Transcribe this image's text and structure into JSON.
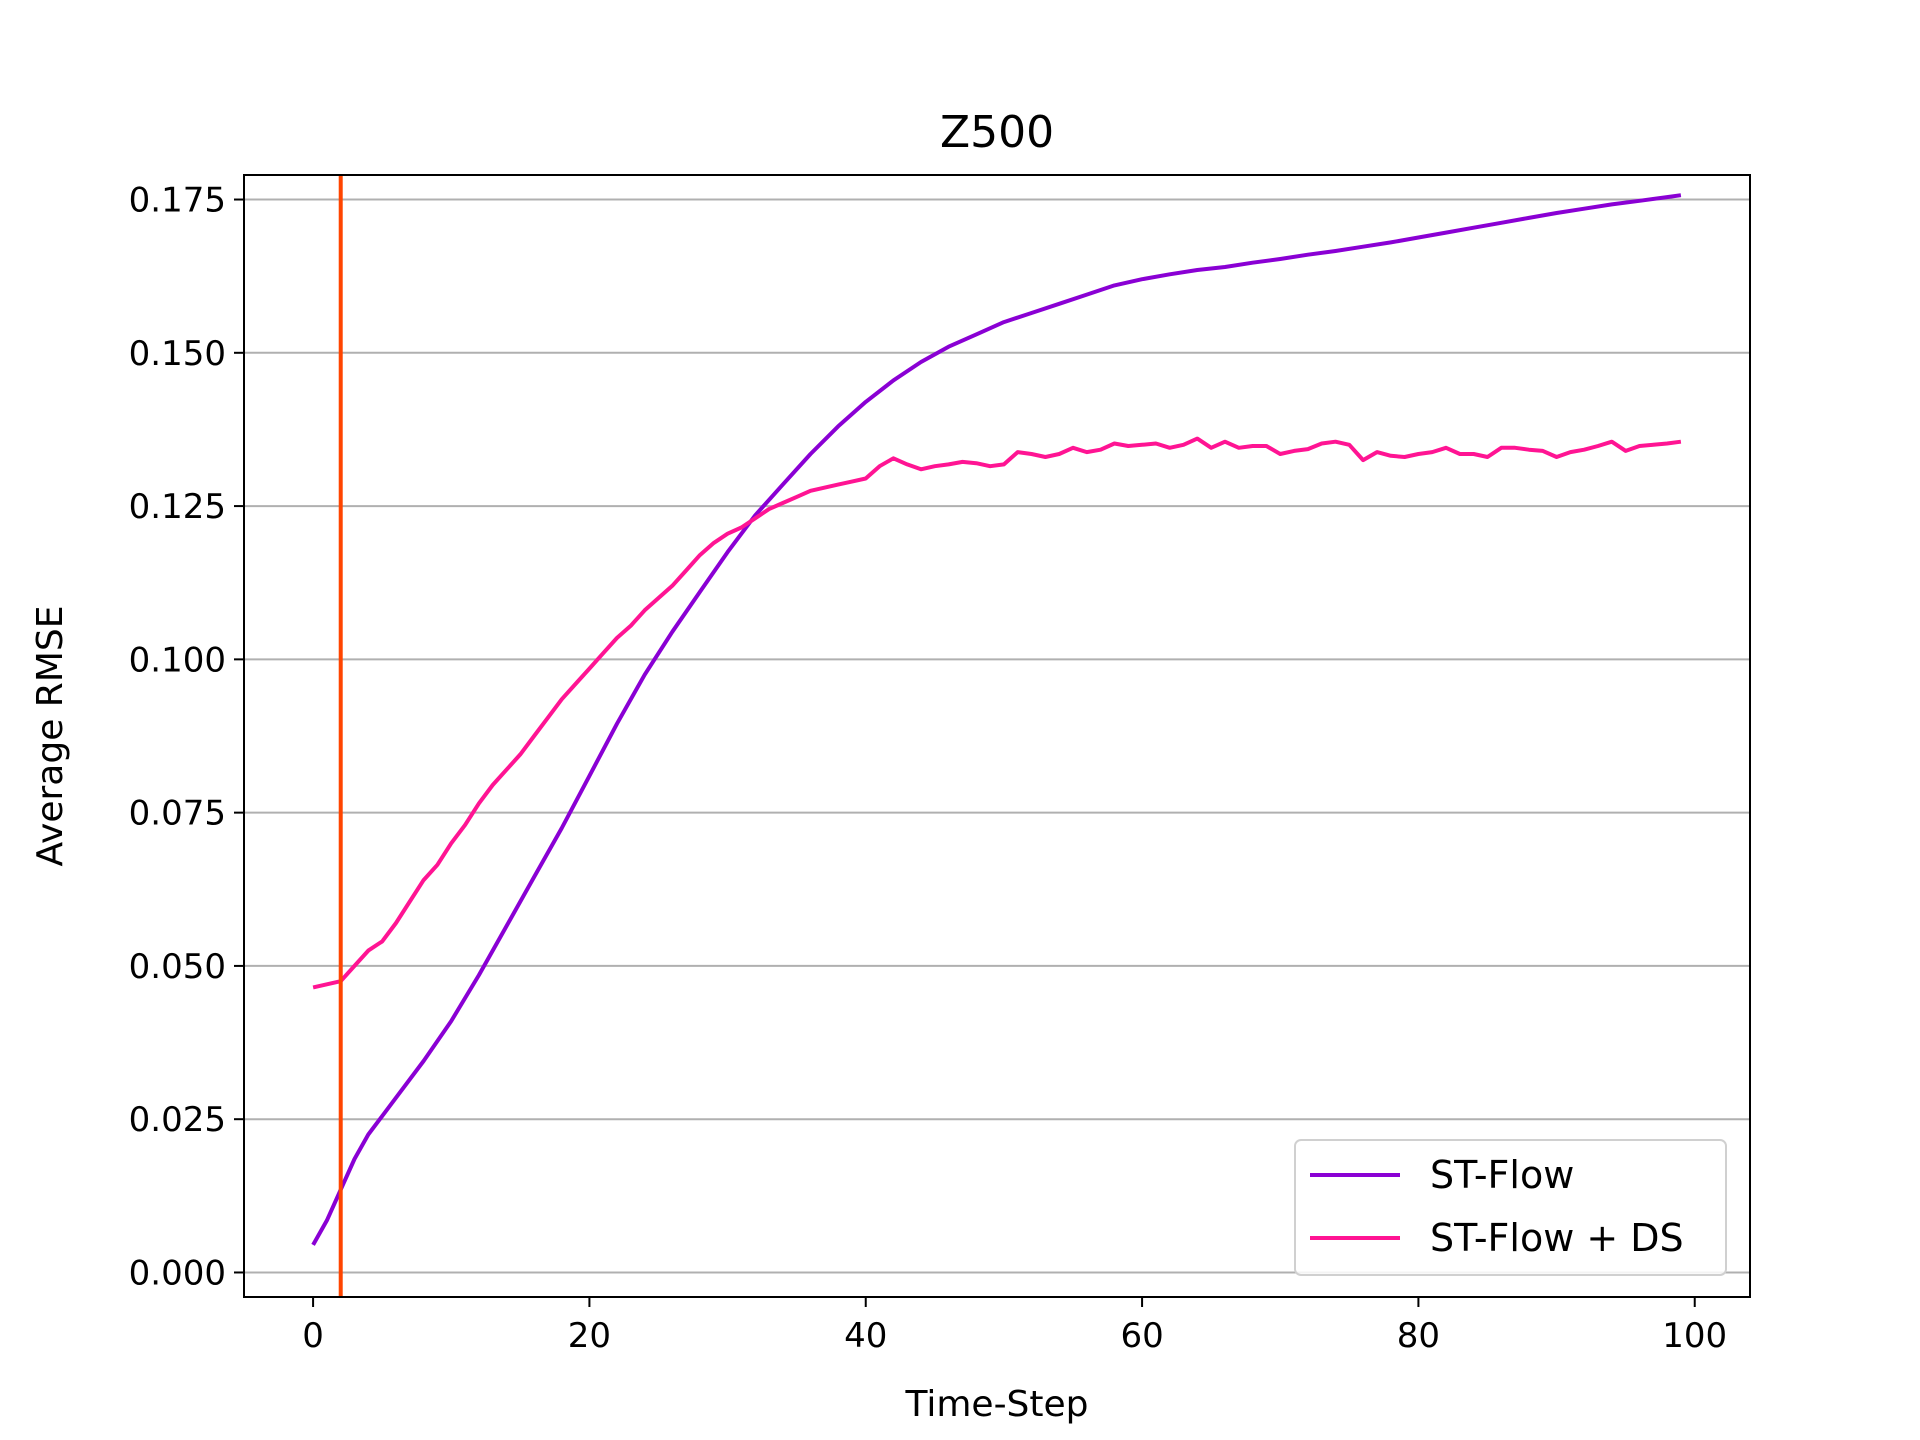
{
  "chart_data": {
    "type": "line",
    "title": "Z500",
    "xlabel": "Time-Step",
    "ylabel": "Average RMSE",
    "xlim": [
      -5,
      104
    ],
    "ylim": [
      -0.004,
      0.179
    ],
    "xticks": [
      0,
      20,
      40,
      60,
      80,
      100
    ],
    "xtick_labels": [
      "0",
      "20",
      "40",
      "60",
      "80",
      "100"
    ],
    "yticks": [
      0.0,
      0.025,
      0.05,
      0.075,
      0.1,
      0.125,
      0.15,
      0.175
    ],
    "ytick_labels": [
      "0.000",
      "0.025",
      "0.050",
      "0.075",
      "0.100",
      "0.125",
      "0.150",
      "0.175"
    ],
    "grid": "horizontal",
    "legend_position": "lower-right",
    "vertical_line": {
      "x": 2,
      "color": "#ff4500"
    },
    "series": [
      {
        "name": "ST-Flow",
        "color": "#8a00d4",
        "points": [
          [
            0,
            0.0045
          ],
          [
            1,
            0.0085
          ],
          [
            2,
            0.0135
          ],
          [
            3,
            0.0185
          ],
          [
            4,
            0.0225
          ],
          [
            5,
            0.0255
          ],
          [
            6,
            0.0285
          ],
          [
            8,
            0.0345
          ],
          [
            10,
            0.041
          ],
          [
            12,
            0.0485
          ],
          [
            14,
            0.0565
          ],
          [
            16,
            0.0645
          ],
          [
            18,
            0.0725
          ],
          [
            20,
            0.081
          ],
          [
            22,
            0.0895
          ],
          [
            24,
            0.0975
          ],
          [
            26,
            0.1045
          ],
          [
            28,
            0.111
          ],
          [
            30,
            0.1175
          ],
          [
            32,
            0.1235
          ],
          [
            34,
            0.1285
          ],
          [
            36,
            0.1335
          ],
          [
            38,
            0.138
          ],
          [
            40,
            0.142
          ],
          [
            42,
            0.1455
          ],
          [
            44,
            0.1485
          ],
          [
            46,
            0.151
          ],
          [
            48,
            0.153
          ],
          [
            50,
            0.155
          ],
          [
            52,
            0.1565
          ],
          [
            54,
            0.158
          ],
          [
            56,
            0.1595
          ],
          [
            58,
            0.161
          ],
          [
            60,
            0.162
          ],
          [
            62,
            0.1628
          ],
          [
            64,
            0.1635
          ],
          [
            66,
            0.164
          ],
          [
            68,
            0.1647
          ],
          [
            70,
            0.1653
          ],
          [
            72,
            0.166
          ],
          [
            74,
            0.1666
          ],
          [
            76,
            0.1673
          ],
          [
            78,
            0.168
          ],
          [
            80,
            0.1688
          ],
          [
            82,
            0.1696
          ],
          [
            84,
            0.1704
          ],
          [
            86,
            0.1712
          ],
          [
            88,
            0.172
          ],
          [
            90,
            0.1728
          ],
          [
            92,
            0.1735
          ],
          [
            94,
            0.1742
          ],
          [
            96,
            0.1748
          ],
          [
            98,
            0.1754
          ],
          [
            99,
            0.1757
          ]
        ]
      },
      {
        "name": "ST-Flow + DS",
        "color": "#ff1493",
        "points": [
          [
            0,
            0.0465
          ],
          [
            1,
            0.047
          ],
          [
            2,
            0.0475
          ],
          [
            3,
            0.05
          ],
          [
            4,
            0.0525
          ],
          [
            5,
            0.054
          ],
          [
            6,
            0.057
          ],
          [
            7,
            0.0605
          ],
          [
            8,
            0.064
          ],
          [
            9,
            0.0665
          ],
          [
            10,
            0.07
          ],
          [
            11,
            0.073
          ],
          [
            12,
            0.0765
          ],
          [
            13,
            0.0795
          ],
          [
            14,
            0.082
          ],
          [
            15,
            0.0845
          ],
          [
            16,
            0.0875
          ],
          [
            17,
            0.0905
          ],
          [
            18,
            0.0935
          ],
          [
            19,
            0.096
          ],
          [
            20,
            0.0985
          ],
          [
            21,
            0.101
          ],
          [
            22,
            0.1035
          ],
          [
            23,
            0.1055
          ],
          [
            24,
            0.108
          ],
          [
            25,
            0.11
          ],
          [
            26,
            0.112
          ],
          [
            27,
            0.1145
          ],
          [
            28,
            0.117
          ],
          [
            29,
            0.119
          ],
          [
            30,
            0.1205
          ],
          [
            31,
            0.1215
          ],
          [
            32,
            0.123
          ],
          [
            33,
            0.1245
          ],
          [
            34,
            0.1255
          ],
          [
            35,
            0.1265
          ],
          [
            36,
            0.1275
          ],
          [
            37,
            0.128
          ],
          [
            38,
            0.1285
          ],
          [
            39,
            0.129
          ],
          [
            40,
            0.1295
          ],
          [
            41,
            0.1315
          ],
          [
            42,
            0.1328
          ],
          [
            43,
            0.1318
          ],
          [
            44,
            0.131
          ],
          [
            45,
            0.1315
          ],
          [
            46,
            0.1318
          ],
          [
            47,
            0.1322
          ],
          [
            48,
            0.132
          ],
          [
            49,
            0.1315
          ],
          [
            50,
            0.1318
          ],
          [
            51,
            0.1338
          ],
          [
            52,
            0.1335
          ],
          [
            53,
            0.133
          ],
          [
            54,
            0.1335
          ],
          [
            55,
            0.1345
          ],
          [
            56,
            0.1338
          ],
          [
            57,
            0.1342
          ],
          [
            58,
            0.1352
          ],
          [
            59,
            0.1348
          ],
          [
            60,
            0.135
          ],
          [
            61,
            0.1352
          ],
          [
            62,
            0.1345
          ],
          [
            63,
            0.135
          ],
          [
            64,
            0.136
          ],
          [
            65,
            0.1345
          ],
          [
            66,
            0.1355
          ],
          [
            67,
            0.1345
          ],
          [
            68,
            0.1348
          ],
          [
            69,
            0.1348
          ],
          [
            70,
            0.1335
          ],
          [
            71,
            0.134
          ],
          [
            72,
            0.1343
          ],
          [
            73,
            0.1352
          ],
          [
            74,
            0.1355
          ],
          [
            75,
            0.135
          ],
          [
            76,
            0.1325
          ],
          [
            77,
            0.1338
          ],
          [
            78,
            0.1332
          ],
          [
            79,
            0.133
          ],
          [
            80,
            0.1335
          ],
          [
            81,
            0.1338
          ],
          [
            82,
            0.1345
          ],
          [
            83,
            0.1335
          ],
          [
            84,
            0.1335
          ],
          [
            85,
            0.133
          ],
          [
            86,
            0.1345
          ],
          [
            87,
            0.1345
          ],
          [
            88,
            0.1342
          ],
          [
            89,
            0.134
          ],
          [
            90,
            0.133
          ],
          [
            91,
            0.1338
          ],
          [
            92,
            0.1342
          ],
          [
            93,
            0.1348
          ],
          [
            94,
            0.1355
          ],
          [
            95,
            0.134
          ],
          [
            96,
            0.1348
          ],
          [
            97,
            0.135
          ],
          [
            98,
            0.1352
          ],
          [
            99,
            0.1355
          ]
        ]
      }
    ]
  }
}
